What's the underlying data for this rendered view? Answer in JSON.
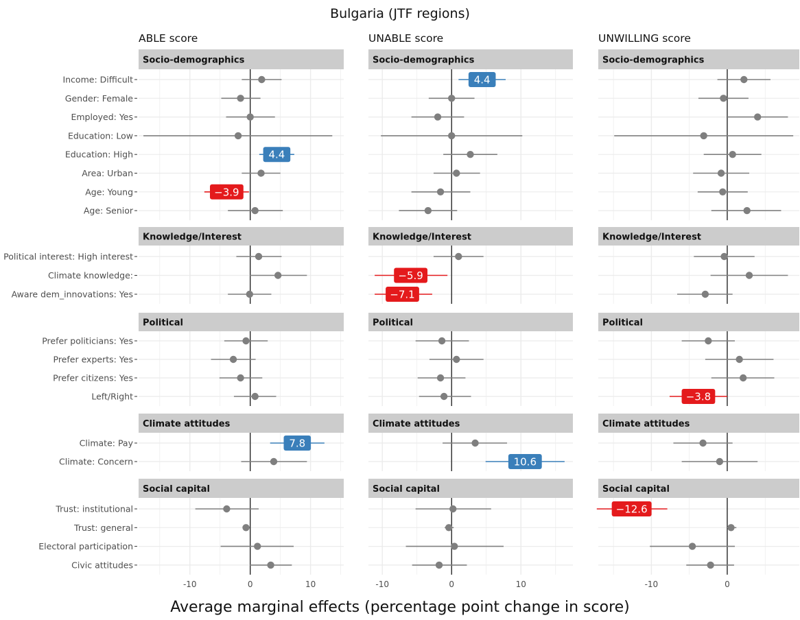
{
  "chart_data": {
    "type": "forest",
    "title": "Bulgaria (JTF regions)",
    "xlabel": "Average marginal effects (percentage point change in score)",
    "x_ticks": [
      -10,
      0,
      10
    ],
    "colors": {
      "neutral": "#7f7f7f",
      "positive": "#3a7fba",
      "negative": "#e41a1c",
      "strip": "#cccccc",
      "grid": "#ebebeb"
    },
    "groups": [
      {
        "name": "Socio-demographics",
        "variables": [
          "Income: Difficult",
          "Gender: Female",
          "Employed: Yes",
          "Education: Low",
          "Education: High",
          "Area: Urban",
          "Age: Young",
          "Age: Senior"
        ]
      },
      {
        "name": "Knowledge/Interest",
        "variables": [
          "Political interest: High interest",
          "Climate knowledge:",
          "Aware dem_innovations: Yes"
        ]
      },
      {
        "name": "Political",
        "variables": [
          "Prefer politicians: Yes",
          "Prefer experts: Yes",
          "Prefer citizens: Yes",
          "Left/Right"
        ]
      },
      {
        "name": "Climate attitudes",
        "variables": [
          "Climate: Pay",
          "Climate: Concern"
        ]
      },
      {
        "name": "Social capital",
        "variables": [
          "Trust: institutional",
          "Trust: general",
          "Electoral participation",
          "Civic attitudes"
        ]
      }
    ],
    "panels": [
      {
        "name": "ABLE score",
        "xlim": [
          -18.5,
          15.5
        ],
        "estimates": [
          [
            [
              1.9,
              -1.4,
              5.2
            ],
            [
              -1.6,
              -4.8,
              1.7
            ],
            [
              0.0,
              -4.0,
              4.1
            ],
            [
              -2.0,
              -17.7,
              13.6
            ],
            [
              4.4,
              1.5,
              7.3
            ],
            [
              1.8,
              -1.4,
              5.0
            ],
            [
              -3.9,
              -7.6,
              -0.2
            ],
            [
              0.8,
              -3.7,
              5.4
            ]
          ],
          [
            [
              1.4,
              -2.3,
              5.2
            ],
            [
              4.6,
              -0.1,
              9.4
            ],
            [
              -0.1,
              -3.7,
              3.5
            ]
          ],
          [
            [
              -0.7,
              -4.3,
              2.9
            ],
            [
              -2.8,
              -6.5,
              0.9
            ],
            [
              -1.6,
              -5.1,
              2.0
            ],
            [
              0.8,
              -2.7,
              4.3
            ]
          ],
          [
            [
              7.8,
              3.3,
              12.3
            ],
            [
              3.9,
              -1.5,
              9.4
            ]
          ],
          [
            [
              -3.9,
              -9.1,
              1.4
            ],
            [
              -0.7,
              -1.2,
              -0.1
            ],
            [
              1.2,
              -4.9,
              7.2
            ],
            [
              3.4,
              -0.1,
              6.9
            ]
          ]
        ]
      },
      {
        "name": "UNABLE score",
        "xlim": [
          -12.0,
          17.5
        ],
        "estimates": [
          [
            [
              4.4,
              1.0,
              7.8
            ],
            [
              0.0,
              -3.3,
              3.3
            ],
            [
              -2.0,
              -5.8,
              1.8
            ],
            [
              0.0,
              -10.2,
              10.2
            ],
            [
              2.7,
              -1.2,
              6.6
            ],
            [
              0.7,
              -2.6,
              4.1
            ],
            [
              -1.6,
              -5.8,
              2.7
            ],
            [
              -3.4,
              -7.6,
              0.8
            ]
          ],
          [
            [
              1.0,
              -2.6,
              4.6
            ],
            [
              -5.9,
              -11.1,
              -0.6
            ],
            [
              -7.1,
              -11.1,
              -2.8
            ]
          ],
          [
            [
              -1.4,
              -5.2,
              2.5
            ],
            [
              0.7,
              -3.2,
              4.6
            ],
            [
              -1.6,
              -4.9,
              2.0
            ],
            [
              -1.1,
              -4.7,
              2.8
            ]
          ],
          [
            [
              3.4,
              -1.3,
              8.0
            ],
            [
              10.6,
              4.9,
              16.3
            ]
          ],
          [
            [
              0.2,
              -5.2,
              5.7
            ],
            [
              -0.4,
              -1.0,
              0.3
            ],
            [
              0.4,
              -6.6,
              7.5
            ],
            [
              -1.8,
              -5.7,
              2.2
            ]
          ]
        ]
      },
      {
        "name": "UNWILLING score",
        "xlim": [
          -17.0,
          9.5
        ],
        "estimates": [
          [
            [
              2.2,
              -1.3,
              5.7
            ],
            [
              -0.5,
              -3.8,
              2.8
            ],
            [
              4.0,
              0.0,
              8.0
            ],
            [
              -3.1,
              -14.9,
              8.7
            ],
            [
              0.7,
              -3.1,
              4.5
            ],
            [
              -0.8,
              -4.5,
              2.9
            ],
            [
              -0.6,
              -3.9,
              2.7
            ],
            [
              2.6,
              -2.1,
              7.1
            ]
          ],
          [
            [
              -0.4,
              -4.4,
              3.6
            ],
            [
              2.9,
              -2.2,
              8.0
            ],
            [
              -2.9,
              -6.6,
              0.7
            ]
          ],
          [
            [
              -2.5,
              -6.0,
              1.0
            ],
            [
              1.6,
              -2.9,
              6.1
            ],
            [
              2.1,
              -2.1,
              6.2
            ],
            [
              -3.8,
              -7.6,
              0.0
            ]
          ],
          [
            [
              -3.2,
              -7.1,
              0.7
            ],
            [
              -1.0,
              -6.0,
              4.0
            ]
          ],
          [
            [
              -12.6,
              -17.2,
              -7.9
            ],
            [
              0.5,
              -0.1,
              1.2
            ],
            [
              -4.6,
              -10.2,
              1.0
            ],
            [
              -2.2,
              -5.4,
              0.9
            ]
          ]
        ]
      }
    ],
    "labeled_estimates": [
      {
        "panel": "ABLE score",
        "variable": "Education: High",
        "label": "4.4",
        "direction": "positive"
      },
      {
        "panel": "ABLE score",
        "variable": "Age: Young",
        "label": "−3.9",
        "direction": "negative"
      },
      {
        "panel": "ABLE score",
        "variable": "Climate: Pay",
        "label": "7.8",
        "direction": "positive"
      },
      {
        "panel": "UNABLE score",
        "variable": "Income: Difficult",
        "label": "4.4",
        "direction": "positive"
      },
      {
        "panel": "UNABLE score",
        "variable": "Climate knowledge:",
        "label": "−5.9",
        "direction": "negative"
      },
      {
        "panel": "UNABLE score",
        "variable": "Aware dem_innovations: Yes",
        "label": "−7.1",
        "direction": "negative"
      },
      {
        "panel": "UNABLE score",
        "variable": "Climate: Concern",
        "label": "10.6",
        "direction": "positive"
      },
      {
        "panel": "UNWILLING score",
        "variable": "Left/Right",
        "label": "−3.8",
        "direction": "negative"
      },
      {
        "panel": "UNWILLING score",
        "variable": "Trust: institutional",
        "label": "−12.6",
        "direction": "negative"
      }
    ]
  }
}
